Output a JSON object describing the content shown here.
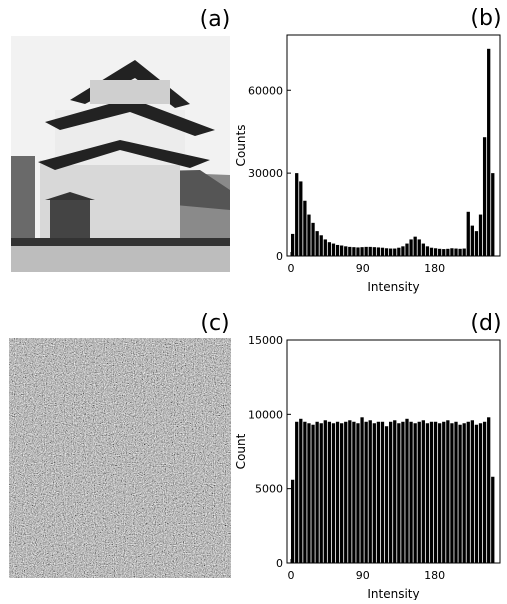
{
  "images": [
    {
      "label": "(a)"
    },
    {
      "label": "(c)"
    }
  ],
  "chart_data": [
    {
      "type": "histogram",
      "panel_label": "(b)",
      "x_label": "Intensity",
      "y_label": "Counts",
      "color": "#000000",
      "bins": [
        0,
        5.12,
        10.24,
        15.36,
        20.48,
        25.6,
        30.72,
        35.84,
        40.96,
        46.08,
        51.2,
        56.32,
        61.44,
        66.56,
        71.68,
        76.8,
        81.92,
        87.04,
        92.16,
        97.28,
        102.4,
        107.52,
        112.64,
        117.76,
        122.88,
        128,
        133.12,
        138.24,
        143.36,
        148.48,
        153.6,
        158.72,
        163.84,
        168.96,
        174.08,
        179.2,
        184.32,
        189.44,
        194.56,
        199.68,
        204.8,
        209.92,
        215.04,
        220.16,
        225.28,
        230.4,
        235.52,
        240.64,
        245.76,
        250.88,
        256
      ],
      "values": [
        8000,
        30000,
        27000,
        20000,
        15000,
        12000,
        9000,
        7500,
        6000,
        5000,
        4500,
        4000,
        3800,
        3500,
        3300,
        3200,
        3100,
        3200,
        3300,
        3300,
        3200,
        3100,
        3000,
        2800,
        2700,
        2700,
        3000,
        3500,
        4500,
        6000,
        7000,
        6000,
        4500,
        3500,
        3000,
        2800,
        2600,
        2500,
        2600,
        2800,
        2700,
        2600,
        2700,
        16000,
        11000,
        9000,
        15000,
        43000,
        75000,
        30000
      ],
      "xlim": [
        -5,
        262
      ],
      "xticks": [
        0,
        90,
        180
      ],
      "ylim": [
        0,
        80000
      ],
      "yticks": [
        0,
        30000,
        60000
      ]
    },
    {
      "type": "histogram",
      "panel_label": "(d)",
      "x_label": "Intensity",
      "y_label": "Count",
      "color": "#000000",
      "bins": [
        0,
        5.12,
        10.24,
        15.36,
        20.48,
        25.6,
        30.72,
        35.84,
        40.96,
        46.08,
        51.2,
        56.32,
        61.44,
        66.56,
        71.68,
        76.8,
        81.92,
        87.04,
        92.16,
        97.28,
        102.4,
        107.52,
        112.64,
        117.76,
        122.88,
        128,
        133.12,
        138.24,
        143.36,
        148.48,
        153.6,
        158.72,
        163.84,
        168.96,
        174.08,
        179.2,
        184.32,
        189.44,
        194.56,
        199.68,
        204.8,
        209.92,
        215.04,
        220.16,
        225.28,
        230.4,
        235.52,
        240.64,
        245.76,
        250.88,
        256
      ],
      "values": [
        5600,
        9500,
        9700,
        9500,
        9400,
        9300,
        9500,
        9400,
        9600,
        9500,
        9400,
        9500,
        9400,
        9500,
        9600,
        9500,
        9400,
        9800,
        9500,
        9600,
        9400,
        9500,
        9500,
        9200,
        9500,
        9600,
        9400,
        9500,
        9700,
        9500,
        9400,
        9500,
        9600,
        9400,
        9500,
        9500,
        9400,
        9500,
        9600,
        9400,
        9500,
        9300,
        9400,
        9500,
        9600,
        9300,
        9400,
        9500,
        9800,
        5800
      ],
      "xlim": [
        -5,
        262
      ],
      "xticks": [
        0,
        90,
        180
      ],
      "ylim": [
        0,
        15000
      ],
      "yticks": [
        0,
        5000,
        10000,
        15000
      ]
    }
  ]
}
